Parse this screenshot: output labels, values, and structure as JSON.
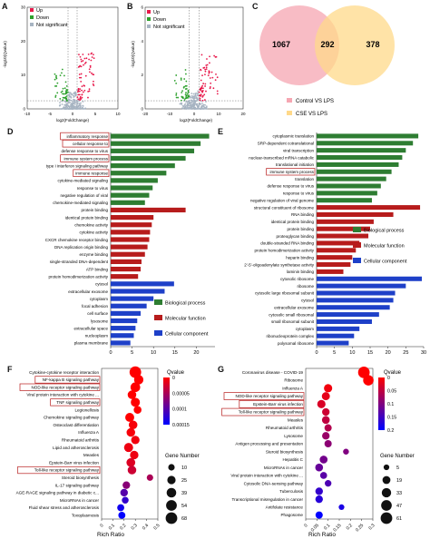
{
  "panels": {
    "A": "A",
    "B": "B",
    "C": "C",
    "D": "D",
    "E": "E",
    "F": "F",
    "G": "G"
  },
  "volcano_legend": {
    "up": "Up",
    "down": "Down",
    "ns": "Not significant"
  },
  "volcano_axes": {
    "xlabel": "log2(FoldChange)",
    "ylabel": "-log10(Qvalue)"
  },
  "colors": {
    "up": "#e8194b",
    "down": "#2ca02c",
    "ns": "#a7b4c2",
    "bp": "#2e7d32",
    "mf": "#b71c1c",
    "cc": "#1e40c8",
    "venn_left": "#f6a6b2",
    "venn_right": "#ffd98a",
    "highlight": "#b71c1c"
  },
  "venn": {
    "left": "1067",
    "center": "292",
    "right": "378",
    "legend": [
      "Control VS LPS",
      "CSE VS LPS"
    ]
  },
  "go_legend": [
    "Biological process",
    "Molecular function",
    "Cellular component"
  ],
  "enrich_axes": {
    "xlabel": "Rich Ratio",
    "qvalue": "Qvalue",
    "gene_number": "Gene Number"
  },
  "chart_data": [
    {
      "panel": "A",
      "type": "scatter",
      "xlabel": "log2(FoldChange)",
      "ylabel": "-log10(Qvalue)",
      "xlim": [
        -10,
        10
      ],
      "ylim": [
        0,
        30
      ],
      "x_ticks": [
        "-10",
        "-5",
        "0",
        "5",
        "10"
      ],
      "y_ticks": [
        "0",
        "10",
        "20",
        "30"
      ],
      "series": [
        {
          "name": "Up"
        },
        {
          "name": "Down"
        },
        {
          "name": "Not significant"
        }
      ]
    },
    {
      "panel": "B",
      "type": "scatter",
      "xlabel": "log2(FoldChange)",
      "ylabel": "-log10(Qvalue)",
      "xlim": [
        -20,
        20
      ],
      "ylim": [
        0,
        6
      ],
      "x_ticks": [
        "-20",
        "-10",
        "0",
        "10",
        "20"
      ],
      "y_ticks": [
        "0",
        "2",
        "4",
        "6"
      ],
      "series": [
        {
          "name": "Up"
        },
        {
          "name": "Down"
        },
        {
          "name": "Not significant"
        }
      ]
    },
    {
      "panel": "D",
      "type": "bar",
      "orientation": "horizontal",
      "xlim": [
        0,
        25
      ],
      "x_ticks": [
        "0",
        "5",
        "10",
        "15",
        "20",
        "25"
      ],
      "categories": [
        "inflammatory response",
        "cellular response to",
        "defense response to virus",
        "immune system process",
        "type I interferon signaling pathway",
        "immune response",
        "cytokine-mediated signaling",
        "response to virus",
        "negative regulation of viral",
        "chemokine-mediated signaling",
        "protein binding",
        "identical protein binding",
        "chemokine activity",
        "cytokine activity",
        "CXCR chemokine receptor binding",
        "DNA replication origin binding",
        "enzyme binding",
        "single-stranded DNA-dependent",
        "ATP binding",
        "protein homodimerization activity",
        "cytosol",
        "extracellular exosome",
        "cytoplasm",
        "focal adhesion",
        "cell surface",
        "lysosome",
        "extracellular space",
        "nucleoplasm",
        "plasma membrane"
      ],
      "values": [
        23,
        21,
        19.5,
        17.5,
        15,
        13,
        11,
        9.8,
        9,
        8,
        17.5,
        10,
        9.6,
        9.2,
        9,
        8.6,
        8,
        7.2,
        7,
        6.4,
        14.8,
        12.6,
        10,
        8.4,
        7,
        6.2,
        5.8,
        5.4,
        4.6
      ],
      "groups": [
        "bp",
        "bp",
        "bp",
        "bp",
        "bp",
        "bp",
        "bp",
        "bp",
        "bp",
        "bp",
        "mf",
        "mf",
        "mf",
        "mf",
        "mf",
        "mf",
        "mf",
        "mf",
        "mf",
        "mf",
        "cc",
        "cc",
        "cc",
        "cc",
        "cc",
        "cc",
        "cc",
        "cc",
        "cc"
      ],
      "highlighted": [
        0,
        1,
        3,
        5
      ]
    },
    {
      "panel": "E",
      "type": "bar",
      "orientation": "horizontal",
      "xlim": [
        0,
        30
      ],
      "x_ticks": [
        "0",
        "5",
        "10",
        "15",
        "20",
        "25",
        "30"
      ],
      "categories": [
        "cytoplasmic translation",
        "SRP-dependent cotranslational",
        "viral transcription",
        "nuclear-transcribed mRNA catabolic",
        "translational initiation",
        "immune system process",
        "translation",
        "defense response to virus",
        "response to virus",
        "negative regulation of viral genome",
        "structural constituent of ribosome",
        "RNA binding",
        "identical protein binding",
        "protein binding",
        "proteoglycan binding",
        "double-stranded RNA binding",
        "protein homodimerization activity",
        "heparin binding",
        "2'-5'-oligoadenylate synthetase activity",
        "laminin binding",
        "cytosolic ribosome",
        "ribosome",
        "cytosolic large ribosomal subunit",
        "cytosol",
        "extracellular exosome",
        "cytosolic small ribosomal",
        "small ribosomal subunit",
        "cytoplasm",
        "ribonucleoprotein complex",
        "polysomal ribosome"
      ],
      "values": [
        28.5,
        27,
        25,
        24,
        23,
        21,
        19.5,
        18,
        17,
        15.5,
        29,
        21.5,
        16,
        15,
        14.5,
        12,
        11,
        10,
        9.5,
        7.5,
        29.5,
        25,
        22,
        21.5,
        20.5,
        17.5,
        15.5,
        12,
        10.5,
        9
      ],
      "groups": [
        "bp",
        "bp",
        "bp",
        "bp",
        "bp",
        "bp",
        "bp",
        "bp",
        "bp",
        "bp",
        "mf",
        "mf",
        "mf",
        "mf",
        "mf",
        "mf",
        "mf",
        "mf",
        "mf",
        "mf",
        "cc",
        "cc",
        "cc",
        "cc",
        "cc",
        "cc",
        "cc",
        "cc",
        "cc",
        "cc"
      ],
      "highlighted": [
        5
      ]
    },
    {
      "panel": "F",
      "type": "scatter",
      "xlabel": "Rich Ratio",
      "x_ticks": [
        "0",
        "0.1",
        "0.2",
        "0.3",
        "0.4",
        "0.5"
      ],
      "xlim": [
        0,
        0.5
      ],
      "categories": [
        "Cytokine-cytokine receptor interaction",
        "NF-kappa B signaling pathway",
        "NOD-like receptor signaling pathway",
        "Viral protein interaction with cytokine ...",
        "TNF signaling pathway",
        "Legionellosis",
        "Chemokine signaling pathway",
        "Osteoclast differentiation",
        "Influenza A",
        "Rheumatoid arthritis",
        "Lipid and atherosclerosis",
        "Measles",
        "Epstein-Barr virus infection",
        "Toll-like receptor signaling pathway",
        "Steroid biosynthesis",
        "IL-17 signaling pathway",
        "AGE-RAGE signaling pathway in diabetic c...",
        "MicroRNAs in cancer",
        "Fluid shear stress and atherosclerosis",
        "Toxoplasmosis"
      ],
      "x": [
        0.3,
        0.33,
        0.3,
        0.27,
        0.3,
        0.32,
        0.25,
        0.28,
        0.26,
        0.3,
        0.24,
        0.29,
        0.26,
        0.27,
        0.43,
        0.22,
        0.2,
        0.21,
        0.17,
        0.18
      ],
      "gene_number": [
        68,
        36,
        40,
        28,
        33,
        20,
        32,
        28,
        28,
        26,
        33,
        26,
        30,
        28,
        10,
        18,
        18,
        12,
        14,
        14
      ],
      "qvalue": [
        0,
        0,
        0,
        0,
        0,
        0,
        0,
        5e-06,
        5e-06,
        8e-06,
        1e-05,
        1e-05,
        2e-05,
        3e-05,
        5e-05,
        7e-05,
        0.0001,
        0.00012,
        0.00014,
        0.00015
      ],
      "legend_qvalue_ticks": [
        "0",
        "0.00005",
        "0.0001",
        "0.00015"
      ],
      "legend_gene_ticks": [
        "10",
        "25",
        "39",
        "54",
        "68"
      ],
      "highlighted": [
        1,
        2,
        4,
        13
      ]
    },
    {
      "panel": "G",
      "type": "scatter",
      "xlabel": "Rich Ratio",
      "x_ticks": [
        "0",
        "0.05",
        "0.1",
        "0.15",
        "0.2",
        "0.25",
        "0.3"
      ],
      "xlim": [
        0,
        0.3
      ],
      "categories": [
        "Coronavirus disease - COVID-19",
        "Ribosome",
        "Influenza A",
        "NOD-like receptor signaling pathway",
        "Epstein-Barr virus infection",
        "Toll-like receptor signaling pathway",
        "Measles",
        "Rheumatoid arthritis",
        "Lysosome",
        "Antigen processing and presentation",
        "Steroid biosynthesis",
        "Hepatitis C",
        "MicroRNAs in cancer",
        "Viral protein interaction with cytokine ...",
        "Cytosolic DNA-sensing pathway",
        "Tuberculosis",
        "Transcriptional misregulation in cancer",
        "Antifolate resistance",
        "Phagosome"
      ],
      "x": [
        0.26,
        0.28,
        0.1,
        0.09,
        0.07,
        0.09,
        0.09,
        0.1,
        0.09,
        0.1,
        0.18,
        0.08,
        0.06,
        0.08,
        0.1,
        0.06,
        0.06,
        0.16,
        0.06
      ],
      "gene_number": [
        61,
        45,
        22,
        20,
        22,
        16,
        18,
        14,
        16,
        14,
        6,
        18,
        18,
        12,
        10,
        16,
        16,
        5,
        14
      ],
      "qvalue": [
        0,
        0,
        0.01,
        0.02,
        0.03,
        0.04,
        0.05,
        0.06,
        0.08,
        0.09,
        0.1,
        0.11,
        0.12,
        0.13,
        0.14,
        0.16,
        0.17,
        0.18,
        0.2
      ],
      "legend_qvalue_ticks": [
        "0",
        "0.05",
        "0.1",
        "0.15",
        "0.2"
      ],
      "legend_gene_ticks": [
        "5",
        "19",
        "33",
        "47",
        "61"
      ],
      "highlighted": [
        3,
        4,
        5
      ]
    }
  ]
}
